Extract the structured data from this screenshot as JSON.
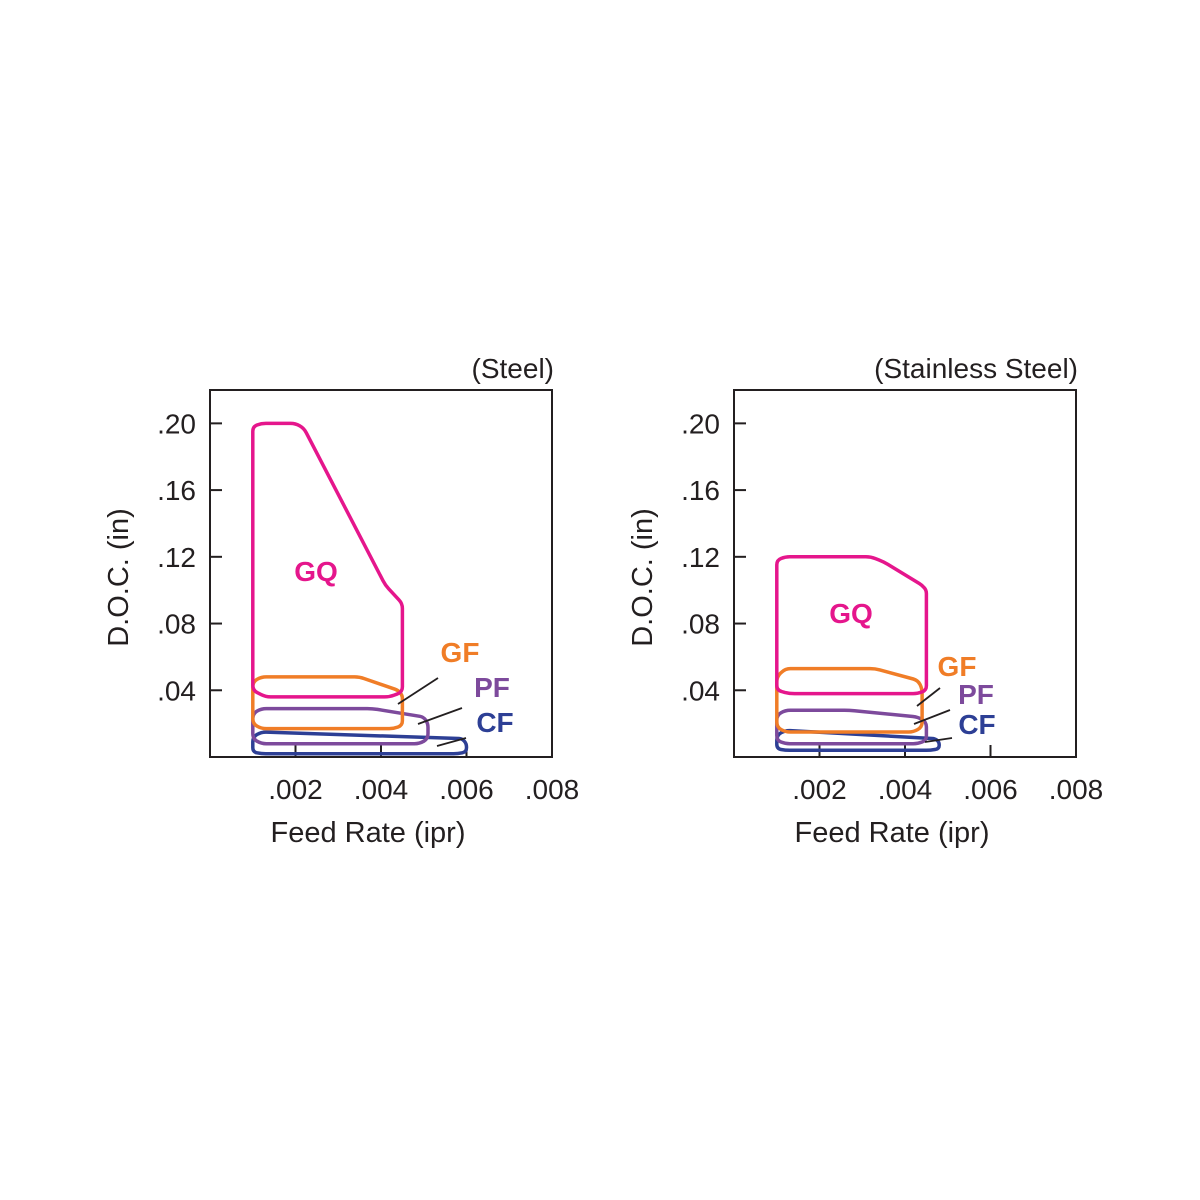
{
  "colors": {
    "GQ": "#e5168c",
    "GF": "#f07d27",
    "PF": "#7d4a9c",
    "CF": "#2d3f95",
    "axis": "#231f20"
  },
  "chart_data": [
    {
      "type": "area",
      "title": "(Steel)",
      "xlabel": "Feed Rate (ipr)",
      "ylabel": "D.O.C. (in)",
      "xlim": [
        0,
        0.008
      ],
      "ylim": [
        0,
        0.22
      ],
      "x_ticks": [
        ".002",
        ".004",
        ".006",
        ".008"
      ],
      "y_ticks": [
        ".20",
        ".16",
        ".12",
        ".08",
        ".04"
      ],
      "x_tick_values": [
        0.002,
        0.004,
        0.006,
        0.008
      ],
      "y_tick_values": [
        0.2,
        0.16,
        0.12,
        0.08,
        0.04
      ],
      "grid": false,
      "series": [
        {
          "name": "GQ",
          "points": [
            [
              0.001,
              0.04
            ],
            [
              0.001,
              0.198
            ],
            [
              0.0012,
              0.2
            ],
            [
              0.002,
              0.2
            ],
            [
              0.0022,
              0.197
            ],
            [
              0.0041,
              0.103
            ],
            [
              0.0045,
              0.092
            ],
            [
              0.0045,
              0.039
            ],
            [
              0.0042,
              0.036
            ],
            [
              0.0013,
              0.036
            ]
          ]
        },
        {
          "name": "GF",
          "points": [
            [
              0.001,
              0.02
            ],
            [
              0.001,
              0.045
            ],
            [
              0.0012,
              0.048
            ],
            [
              0.0035,
              0.048
            ],
            [
              0.0044,
              0.04
            ],
            [
              0.0045,
              0.037
            ],
            [
              0.0045,
              0.019
            ],
            [
              0.0043,
              0.017
            ],
            [
              0.0012,
              0.017
            ]
          ]
        },
        {
          "name": "PF",
          "points": [
            [
              0.001,
              0.011
            ],
            [
              0.001,
              0.026
            ],
            [
              0.0012,
              0.029
            ],
            [
              0.0038,
              0.029
            ],
            [
              0.005,
              0.024
            ],
            [
              0.0051,
              0.02
            ],
            [
              0.0051,
              0.011
            ],
            [
              0.0049,
              0.008
            ],
            [
              0.0012,
              0.008
            ]
          ]
        },
        {
          "name": "CF",
          "points": [
            [
              0.001,
              0.003
            ],
            [
              0.001,
              0.012
            ],
            [
              0.0012,
              0.015
            ],
            [
              0.0059,
              0.011
            ],
            [
              0.006,
              0.008
            ],
            [
              0.006,
              0.003
            ],
            [
              0.0058,
              0.002
            ],
            [
              0.0012,
              0.002
            ]
          ]
        }
      ]
    },
    {
      "type": "area",
      "title": "(Stainless Steel)",
      "xlabel": "Feed Rate (ipr)",
      "ylabel": "D.O.C. (in)",
      "xlim": [
        0,
        0.008
      ],
      "ylim": [
        0,
        0.22
      ],
      "x_ticks": [
        ".002",
        ".004",
        ".006",
        ".008"
      ],
      "y_ticks": [
        ".20",
        ".16",
        ".12",
        ".08",
        ".04"
      ],
      "x_tick_values": [
        0.002,
        0.004,
        0.006,
        0.008
      ],
      "y_tick_values": [
        0.2,
        0.16,
        0.12,
        0.08,
        0.04
      ],
      "grid": false,
      "series": [
        {
          "name": "GQ",
          "points": [
            [
              0.001,
              0.04
            ],
            [
              0.001,
              0.118
            ],
            [
              0.0012,
              0.12
            ],
            [
              0.0032,
              0.12
            ],
            [
              0.0035,
              0.117
            ],
            [
              0.0044,
              0.103
            ],
            [
              0.0045,
              0.1
            ],
            [
              0.0045,
              0.04
            ],
            [
              0.0043,
              0.038
            ],
            [
              0.0013,
              0.038
            ]
          ]
        },
        {
          "name": "GF",
          "points": [
            [
              0.001,
              0.018
            ],
            [
              0.001,
              0.048
            ],
            [
              0.0012,
              0.053
            ],
            [
              0.0033,
              0.053
            ],
            [
              0.0043,
              0.046
            ],
            [
              0.0044,
              0.041
            ],
            [
              0.0044,
              0.018
            ],
            [
              0.0042,
              0.015
            ],
            [
              0.0012,
              0.015
            ]
          ]
        },
        {
          "name": "PF",
          "points": [
            [
              0.001,
              0.01
            ],
            [
              0.001,
              0.025
            ],
            [
              0.0012,
              0.028
            ],
            [
              0.0027,
              0.028
            ],
            [
              0.0043,
              0.024
            ],
            [
              0.0045,
              0.021
            ],
            [
              0.0045,
              0.01
            ],
            [
              0.0043,
              0.008
            ],
            [
              0.0012,
              0.008
            ]
          ]
        },
        {
          "name": "CF",
          "points": [
            [
              0.001,
              0.005
            ],
            [
              0.001,
              0.013
            ],
            [
              0.0012,
              0.016
            ],
            [
              0.0047,
              0.011
            ],
            [
              0.0048,
              0.009
            ],
            [
              0.0048,
              0.005
            ],
            [
              0.0046,
              0.004
            ],
            [
              0.0012,
              0.004
            ]
          ]
        }
      ]
    }
  ]
}
